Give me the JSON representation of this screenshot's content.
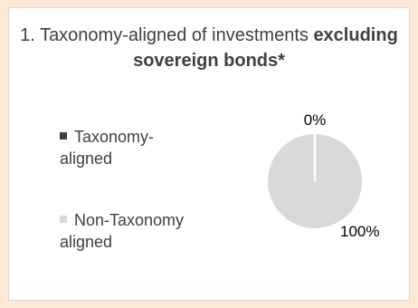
{
  "chart_data": {
    "type": "pie",
    "title_prefix": "1. Taxonomy-aligned of investments ",
    "title_bold": "excluding sovereign bonds*",
    "categories": [
      "Taxonomy-aligned",
      "Non-Taxonomy aligned"
    ],
    "values": [
      0,
      100
    ],
    "value_labels": [
      "0%",
      "100%"
    ],
    "colors": [
      "#404040",
      "#d9d9d9"
    ],
    "legend_placement": "left"
  }
}
